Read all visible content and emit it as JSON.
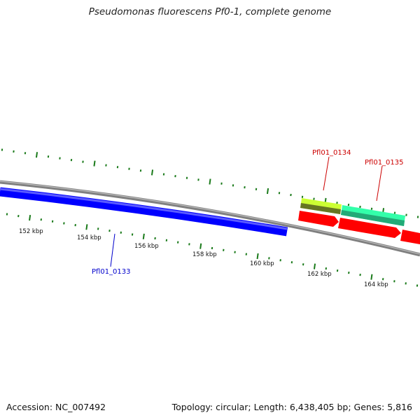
{
  "title": "Pseudomonas fluorescens Pf0-1, complete genome",
  "footer": {
    "accession": "Accession: NC_007492",
    "summary": "Topology: circular; Length: 6,438,405 bp; Genes: 5,816"
  },
  "scale_labels": [
    "152 kbp",
    "154 kbp",
    "156 kbp",
    "158 kbp",
    "160 kbp",
    "162 kbp",
    "164 kbp"
  ],
  "gene_labels": [
    {
      "id": "Pfl01_0133",
      "text": "Pfl01_0133",
      "color": "#0000cc"
    },
    {
      "id": "Pfl01_0134",
      "text": "Pfl01_0134",
      "color": "#cc0000"
    },
    {
      "id": "Pfl01_0135",
      "text": "Pfl01_0135",
      "color": "#cc0000"
    }
  ],
  "colors": {
    "backbone": "#808080",
    "tick": "#1a7a1a",
    "forward_cds": "#0000ff",
    "reverse_cds": "#ff0000",
    "feature_lightgreen": "#ccff33",
    "feature_olive": "#667722",
    "feature_aqua": "#33ffaa"
  }
}
